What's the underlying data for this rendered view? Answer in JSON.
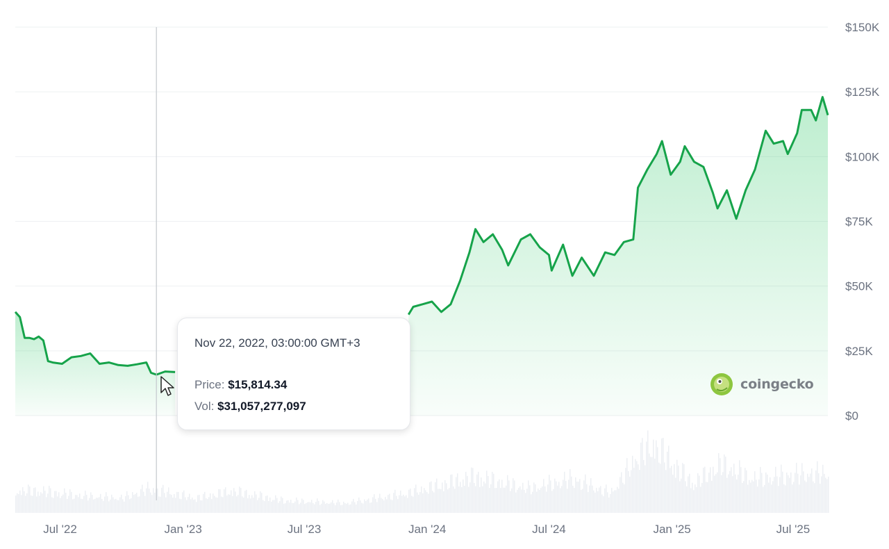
{
  "chart_data": {
    "type": "area",
    "title": "",
    "xlabel": "",
    "ylabel": "",
    "ylim": [
      0,
      150000
    ],
    "y_ticks": [
      "$150K",
      "$125K",
      "$100K",
      "$75K",
      "$50K",
      "$25K",
      "$0"
    ],
    "y_tick_values": [
      150000,
      125000,
      100000,
      75000,
      50000,
      25000,
      0
    ],
    "x_ticks": [
      "Jul '22",
      "Jan '23",
      "Jul '23",
      "Jan '24",
      "Jul '24",
      "Jan '25",
      "Jul '25"
    ],
    "x_tick_dates": [
      "2022-07-01",
      "2023-01-01",
      "2023-07-01",
      "2024-01-01",
      "2024-07-01",
      "2025-01-01",
      "2025-07-01"
    ],
    "xlim": [
      "2022-04-25",
      "2025-08-22"
    ],
    "grid": true,
    "line_color": "#16a34a",
    "fill_color": "#22c55e",
    "series": [
      {
        "name": "Price",
        "points": [
          [
            "2022-04-25",
            40000
          ],
          [
            "2022-05-02",
            38000
          ],
          [
            "2022-05-09",
            30000
          ],
          [
            "2022-05-16",
            30000
          ],
          [
            "2022-05-23",
            29500
          ],
          [
            "2022-05-30",
            30500
          ],
          [
            "2022-06-06",
            29000
          ],
          [
            "2022-06-13",
            21000
          ],
          [
            "2022-06-20",
            20500
          ],
          [
            "2022-07-04",
            20000
          ],
          [
            "2022-07-18",
            22500
          ],
          [
            "2022-08-01",
            23000
          ],
          [
            "2022-08-15",
            24000
          ],
          [
            "2022-08-29",
            20000
          ],
          [
            "2022-09-12",
            20500
          ],
          [
            "2022-09-26",
            19500
          ],
          [
            "2022-10-10",
            19200
          ],
          [
            "2022-10-24",
            19800
          ],
          [
            "2022-11-07",
            20500
          ],
          [
            "2022-11-14",
            16500
          ],
          [
            "2022-11-22",
            15814
          ],
          [
            "2022-12-05",
            17000
          ],
          [
            "2022-12-20",
            16800
          ],
          [
            "2023-12-04",
            39000
          ],
          [
            "2023-12-11",
            42000
          ],
          [
            "2023-12-25",
            43000
          ],
          [
            "2024-01-08",
            44000
          ],
          [
            "2024-01-22",
            40000
          ],
          [
            "2024-02-05",
            43000
          ],
          [
            "2024-02-19",
            52000
          ],
          [
            "2024-03-04",
            63000
          ],
          [
            "2024-03-13",
            72000
          ],
          [
            "2024-03-25",
            67000
          ],
          [
            "2024-04-08",
            70000
          ],
          [
            "2024-04-22",
            64000
          ],
          [
            "2024-05-01",
            58000
          ],
          [
            "2024-05-20",
            68000
          ],
          [
            "2024-06-03",
            70000
          ],
          [
            "2024-06-17",
            65000
          ],
          [
            "2024-07-01",
            62000
          ],
          [
            "2024-07-05",
            56000
          ],
          [
            "2024-07-22",
            66000
          ],
          [
            "2024-08-05",
            54000
          ],
          [
            "2024-08-19",
            61000
          ],
          [
            "2024-09-06",
            54000
          ],
          [
            "2024-09-23",
            63000
          ],
          [
            "2024-10-07",
            62000
          ],
          [
            "2024-10-21",
            67000
          ],
          [
            "2024-11-04",
            68000
          ],
          [
            "2024-11-11",
            88000
          ],
          [
            "2024-11-25",
            95000
          ],
          [
            "2024-12-09",
            101000
          ],
          [
            "2024-12-17",
            106000
          ],
          [
            "2024-12-30",
            93000
          ],
          [
            "2025-01-13",
            98000
          ],
          [
            "2025-01-20",
            104000
          ],
          [
            "2025-02-03",
            98000
          ],
          [
            "2025-02-17",
            96000
          ],
          [
            "2025-03-03",
            86000
          ],
          [
            "2025-03-10",
            80000
          ],
          [
            "2025-03-24",
            87000
          ],
          [
            "2025-04-07",
            76000
          ],
          [
            "2025-04-21",
            87000
          ],
          [
            "2025-05-05",
            95000
          ],
          [
            "2025-05-21",
            110000
          ],
          [
            "2025-06-02",
            105000
          ],
          [
            "2025-06-16",
            106000
          ],
          [
            "2025-06-23",
            101000
          ],
          [
            "2025-07-07",
            109000
          ],
          [
            "2025-07-14",
            118000
          ],
          [
            "2025-07-28",
            118000
          ],
          [
            "2025-08-04",
            114000
          ],
          [
            "2025-08-14",
            123000
          ],
          [
            "2025-08-22",
            116000
          ]
        ]
      },
      {
        "name": "Vol",
        "points": [
          [
            "2022-06-01",
            9
          ],
          [
            "2022-08-01",
            7
          ],
          [
            "2022-10-01",
            6
          ],
          [
            "2022-11-10",
            10
          ],
          [
            "2023-01-20",
            6
          ],
          [
            "2023-03-15",
            9
          ],
          [
            "2023-06-01",
            5
          ],
          [
            "2023-09-01",
            4
          ],
          [
            "2023-12-01",
            8
          ],
          [
            "2024-03-10",
            15
          ],
          [
            "2024-06-01",
            10
          ],
          [
            "2024-08-05",
            14
          ],
          [
            "2024-10-01",
            8
          ],
          [
            "2024-11-12",
            24
          ],
          [
            "2024-12-05",
            28
          ],
          [
            "2025-02-01",
            12
          ],
          [
            "2025-03-15",
            20
          ],
          [
            "2025-05-01",
            14
          ],
          [
            "2025-07-15",
            16
          ]
        ]
      }
    ],
    "hover": {
      "date": "2022-11-22",
      "price": 15814.34
    }
  },
  "tooltip": {
    "date_label": "Nov 22, 2022, 03:00:00 GMT+3",
    "price_label": "Price:",
    "price_value": "$15,814.34",
    "vol_label": "Vol:",
    "vol_value": "$31,057,277,097"
  },
  "watermark": {
    "text": "coingecko",
    "icon": "gecko-icon"
  }
}
